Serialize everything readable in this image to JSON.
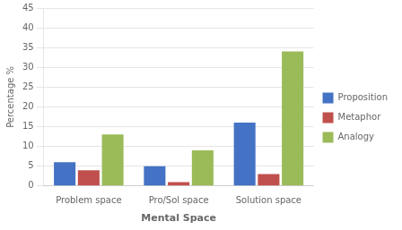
{
  "chart_data": {
    "type": "bar",
    "categories": [
      "Problem space",
      "Pro/Sol space",
      "Solution space"
    ],
    "series": [
      {
        "name": "Proposition",
        "color": "#4472C4",
        "values": [
          6,
          5,
          16
        ]
      },
      {
        "name": "Metaphor",
        "color": "#C0504D",
        "values": [
          4,
          1,
          3
        ]
      },
      {
        "name": "Analogy",
        "color": "#9BBB59",
        "values": [
          13,
          9,
          34
        ]
      }
    ],
    "xlabel": "Mental Space",
    "ylabel": "Percentage %",
    "ylim": [
      0,
      45
    ],
    "yticks": [
      0,
      5,
      10,
      15,
      20,
      25,
      30,
      35,
      40,
      45
    ],
    "grid": true,
    "legend": "right"
  }
}
